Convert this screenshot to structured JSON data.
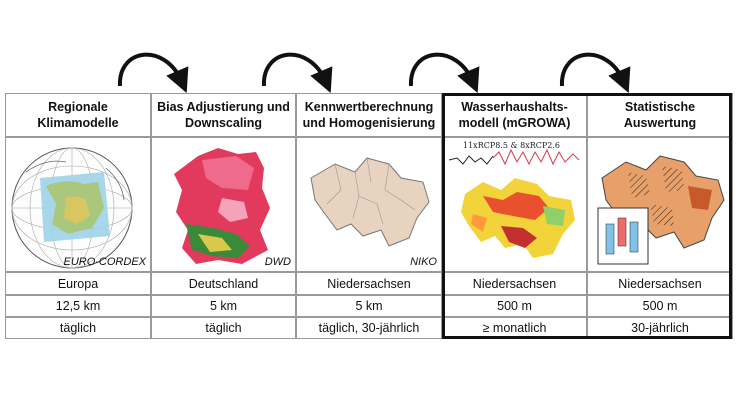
{
  "columns": [
    {
      "title": "Regionale Klimamodelle",
      "image_label": "EURO-CORDEX",
      "region": "Europa",
      "resolution": "12,5 km",
      "temporal": "täglich"
    },
    {
      "title": "Bias Adjustierung und Downscaling",
      "image_label": "DWD",
      "region": "Deutschland",
      "resolution": "5 km",
      "temporal": "täglich"
    },
    {
      "title": "Kennwertberechnung und Homogenisierung",
      "image_label": "NIKO",
      "region": "Niedersachsen",
      "resolution": "5 km",
      "temporal": "täglich, 30-jährlich"
    },
    {
      "title": "Wasserhaushalts-modell (mGROWA)",
      "image_label": "11xRCP8.5 & 8xRCP2.6",
      "region": "Niedersachsen",
      "resolution": "500 m",
      "temporal": "≥ monatlich"
    },
    {
      "title": "Statistische Auswertung",
      "image_label": "",
      "region": "Niedersachsen",
      "resolution": "500 m",
      "temporal": "30-jährlich"
    }
  ],
  "icons": [
    "curved-arrow-icon",
    "globe-icon",
    "map-icon"
  ]
}
